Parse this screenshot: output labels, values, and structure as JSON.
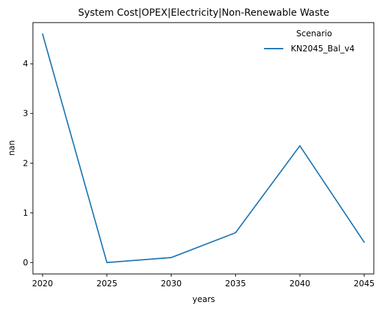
{
  "chart_data": {
    "type": "line",
    "title": "System Cost|OPEX|Electricity|Non-Renewable Waste",
    "xlabel": "years",
    "ylabel": "nan",
    "x": [
      2020,
      2025,
      2030,
      2035,
      2040,
      2045
    ],
    "xticks": [
      "2020",
      "2025",
      "2030",
      "2035",
      "2040",
      "2045"
    ],
    "yticks": [
      "0",
      "1",
      "2",
      "3",
      "4"
    ],
    "xlim": [
      2019.25,
      2045.75
    ],
    "ylim": [
      -0.23,
      4.83
    ],
    "grid": false,
    "legend": {
      "title": "Scenario",
      "placement": "top-right"
    },
    "series": [
      {
        "name": "KN2045_Bal_v4",
        "color": "#1f77b4",
        "values": [
          4.6,
          0.0,
          0.1,
          0.6,
          2.35,
          0.41
        ]
      }
    ]
  }
}
